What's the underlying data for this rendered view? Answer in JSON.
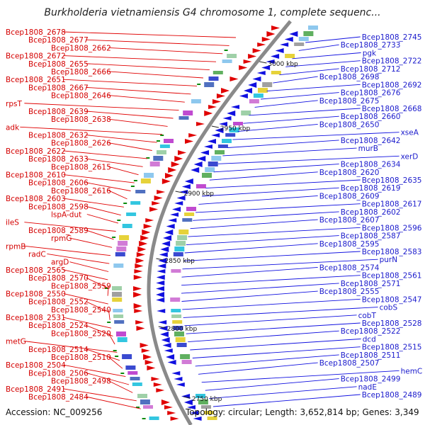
{
  "title": "Burkholderia vietnamiensis G4 chromosome 1, complete sequenc...",
  "footer": {
    "accession": "Accession: NC_009256",
    "summary": "Topology: circular; Length: 3,652,814 bp; Genes: 3,349"
  },
  "colors": {
    "forward": "#e00000",
    "reverse": "#1010e0",
    "backbone": "#8a8a8a",
    "tick": "#0a8a0a"
  },
  "ticks": [
    "3000 kbp",
    "2950 kbp",
    "2900 kbp",
    "2850 kbp",
    "2800 kbp",
    "2750 kbp"
  ],
  "left_labels": [
    "Bcep1808_2678",
    "Bcep1808_2677",
    "Bcep1808_2662",
    "Bcep1808_2672",
    "Bcep1808_2655",
    "Bcep1808_2666",
    "Bcep1808_2651",
    "Bcep1808_2667",
    "Bcep1808_2646",
    "rpsT",
    "Bcep1808_2639",
    "Bcep1808_2638",
    "adk",
    "Bcep1808_2632",
    "Bcep1808_2626",
    "Bcep1808_2622",
    "Bcep1808_2633",
    "Bcep1808_2615",
    "Bcep1808_2610",
    "Bcep1808_2606",
    "Bcep1808_2616",
    "Bcep1808_2603",
    "Bcep1808_2598",
    "lspA-dut",
    "ileS",
    "Bcep1808_2589",
    "rpmG",
    "rpmB",
    "radC",
    "argD",
    "Bcep1808_2565",
    "Bcep1808_2570",
    "Bcep1808_2559",
    "Bcep1808_2550",
    "Bcep1808_2552",
    "Bcep1808_2540",
    "Bcep1808_2531",
    "Bcep1808_2524",
    "Bcep1808_2520",
    "metG",
    "Bcep1808_2514",
    "Bcep1808_2510",
    "Bcep1808_2504",
    "Bcep1808_2506",
    "Bcep1808_2498",
    "Bcep1808_2491",
    "Bcep1808_2484"
  ],
  "right_labels": [
    "Bcep1808_2745",
    "Bcep1808_2733",
    "pgk",
    "Bcep1808_2722",
    "Bcep1808_2712",
    "Bcep1808_2698",
    "Bcep1808_2692",
    "Bcep1808_2676",
    "Bcep1808_2675",
    "Bcep1808_2668",
    "Bcep1808_2660",
    "Bcep1808_2650",
    "xseA",
    "Bcep1808_2642",
    "murB",
    "xerD",
    "Bcep1808_2634",
    "Bcep1808_2620",
    "Bcep1808_2635",
    "Bcep1808_2619",
    "Bcep1808_2609",
    "Bcep1808_2617",
    "Bcep1808_2602",
    "Bcep1808_2607",
    "Bcep1808_2596",
    "Bcep1808_2587",
    "Bcep1808_2595",
    "Bcep1808_2583",
    "purN",
    "Bcep1808_2574",
    "Bcep1808_2561",
    "Bcep1808_2571",
    "Bcep1808_2555",
    "Bcep1808_2547",
    "cobS",
    "cobT",
    "Bcep1808_2528",
    "Bcep1808_2522",
    "dcd",
    "Bcep1808_2515",
    "Bcep1808_2511",
    "Bcep1808_2507",
    "hemC",
    "Bcep1808_2499",
    "nadE",
    "Bcep1808_2489"
  ]
}
